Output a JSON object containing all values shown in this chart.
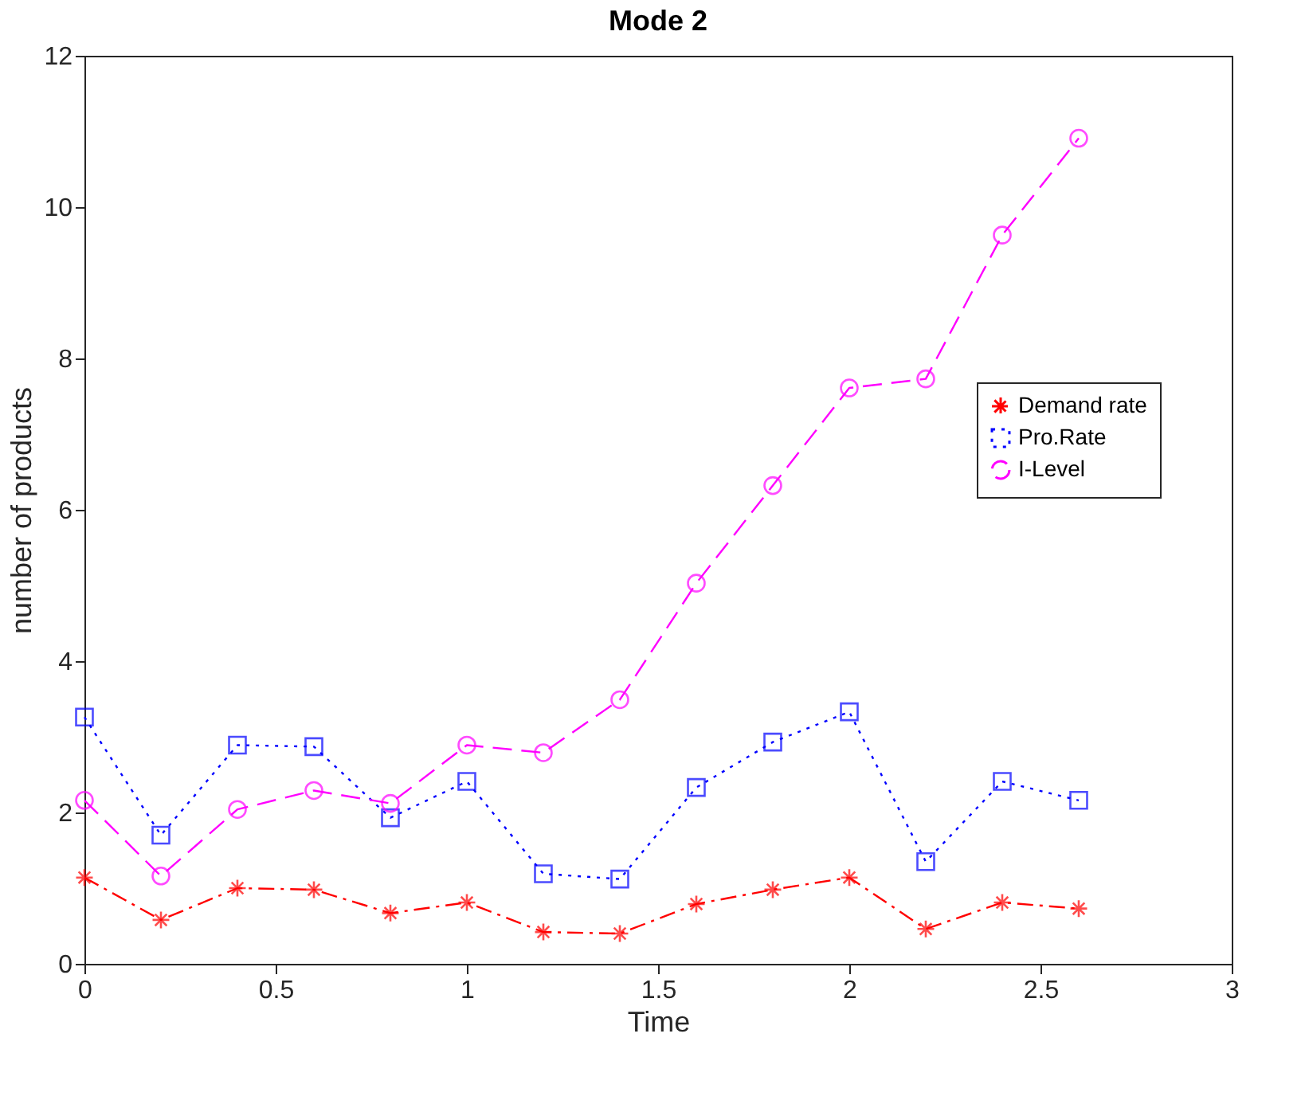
{
  "chart_data": {
    "type": "line",
    "title": "Mode 2",
    "xlabel": "Time",
    "ylabel": "number of products",
    "x": [
      0,
      0.2,
      0.4,
      0.6,
      0.8,
      1.0,
      1.2,
      1.4,
      1.6,
      1.8,
      2.0,
      2.2,
      2.4,
      2.6
    ],
    "series": [
      {
        "name": "Demand rate",
        "color": "#ff0000",
        "marker": "cross",
        "line_style": "dashdot",
        "values": [
          1.14,
          0.58,
          1.0,
          0.98,
          0.67,
          0.81,
          0.42,
          0.4,
          0.79,
          0.98,
          1.14,
          0.46,
          0.81,
          0.73
        ]
      },
      {
        "name": "Pro.Rate",
        "color": "#0000ff",
        "marker": "square",
        "line_style": "dotted",
        "values": [
          3.26,
          1.7,
          2.89,
          2.87,
          1.93,
          2.41,
          1.19,
          1.12,
          2.33,
          2.93,
          3.33,
          1.35,
          2.41,
          2.16
        ]
      },
      {
        "name": "I-Level",
        "color": "#ff00ff",
        "marker": "circle",
        "line_style": "dashed",
        "values": [
          2.16,
          1.16,
          2.04,
          2.29,
          2.12,
          2.89,
          2.79,
          3.49,
          5.03,
          6.32,
          7.61,
          7.73,
          9.63,
          10.91
        ]
      }
    ],
    "xlim": [
      0,
      3
    ],
    "xticks": [
      0,
      0.5,
      1,
      1.5,
      2,
      2.5,
      3
    ],
    "ylim": [
      0,
      12
    ],
    "yticks": [
      0,
      2,
      4,
      6,
      8,
      10,
      12
    ],
    "grid": false,
    "legend": "right"
  }
}
